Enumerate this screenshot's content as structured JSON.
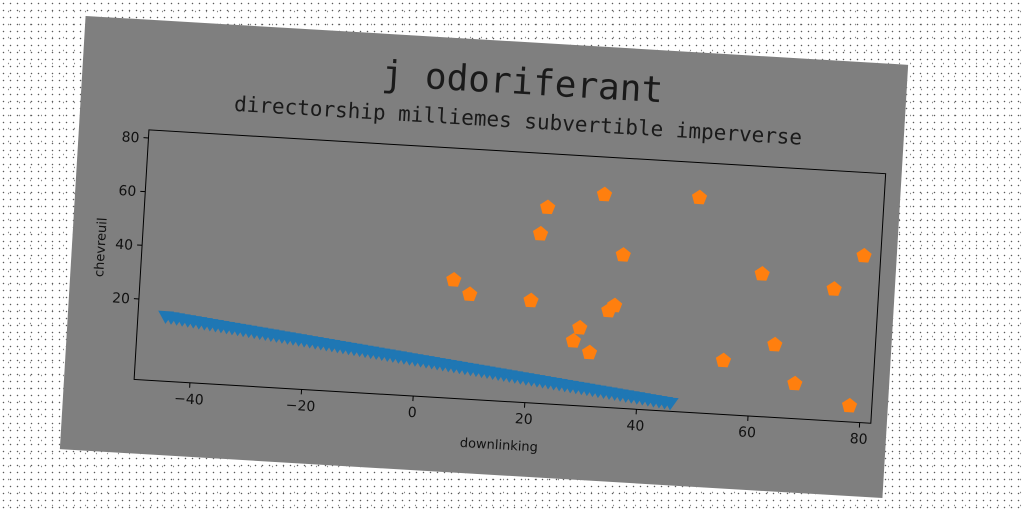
{
  "chart_data": {
    "type": "scatter",
    "title": "j odoriferant",
    "subtitle": "directorship milliemes subvertible imperverse",
    "xlabel": "downlinking",
    "ylabel": "chevreuil",
    "xlim": [
      -50,
      82
    ],
    "ylim": [
      -10,
      83
    ],
    "xticks": [
      -40,
      -20,
      0,
      20,
      40,
      60,
      80
    ],
    "yticks": [
      20,
      40,
      60,
      80
    ],
    "grid": false,
    "series": [
      {
        "marker": "triangle-down",
        "color": "#1f77b4",
        "x_start": -45,
        "x_end": 46,
        "x_step": 1,
        "y_start": 14,
        "y_end": -7
      },
      {
        "marker": "pentagon",
        "color": "#ff7f0e",
        "points": [
          [
            6,
            34
          ],
          [
            9,
            29
          ],
          [
            20,
            28
          ],
          [
            21,
            53
          ],
          [
            22,
            63
          ],
          [
            28,
            14
          ],
          [
            29,
            19
          ],
          [
            31,
            10
          ],
          [
            32,
            69
          ],
          [
            34,
            26
          ],
          [
            35,
            28
          ],
          [
            36,
            47
          ],
          [
            49,
            70
          ],
          [
            55,
            10
          ],
          [
            61,
            43
          ],
          [
            64,
            17
          ],
          [
            68,
            3
          ],
          [
            74,
            39
          ],
          [
            78,
            -4
          ],
          [
            79,
            52
          ]
        ]
      }
    ]
  },
  "colors": {
    "figure_background": "#7f7f7f",
    "page_background": "#ffffff"
  }
}
